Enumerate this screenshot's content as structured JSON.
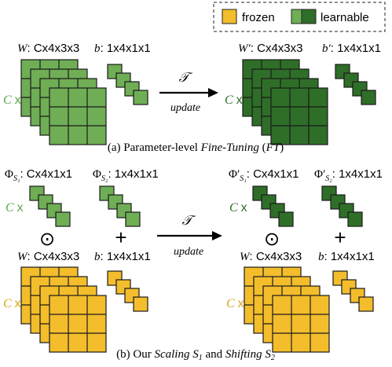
{
  "colors": {
    "frozen": "#f3bd2c",
    "learnable_light": "#6fae55",
    "learnable_dark": "#2f6e28",
    "c_light": "#5aa544",
    "c_dark": "#2f6e28",
    "c_frozen": "#d6a516",
    "stroke": "#1a1a1a"
  },
  "legend": {
    "frozen_label": "frozen",
    "learnable_label": "learnable"
  },
  "panel_a": {
    "w_name": "W",
    "w_dims": ": Cx4x3x3",
    "b_name": "b",
    "b_dims": ": 1x4x1x1",
    "w_prime_name": "W′",
    "w_prime_dims": ": Cx4x3x3",
    "b_prime_name": "b′",
    "b_prime_dims": ": 1x4x1x1",
    "c_label": "C",
    "c_times": "x",
    "transform_symbol": "𝒯",
    "arrow_label": "update",
    "caption_prefix": "(a) Parameter-level ",
    "caption_italic": "Fine-Tuning",
    "caption_mid": " (",
    "caption_abbr": "FT",
    "caption_suffix": ")"
  },
  "panel_b": {
    "phi": "Φ",
    "phi_prime": "Φ′",
    "sub_s1": "S₁",
    "sub_s2": "S₂",
    "phi1_dims": ": Cx4x1x1",
    "phi2_dims": ": 1x4x1x1",
    "c_label": "C",
    "c_times": "x",
    "odot": "⊙",
    "plus": "+",
    "w_name": "W",
    "w_dims": ": Cx4x3x3",
    "b_name": "b",
    "b_dims": ": 1x4x1x1",
    "transform_symbol": "𝒯",
    "arrow_label": "update",
    "caption_prefix": "(b) Our ",
    "caption_scaling": "Scaling S",
    "caption_s1_sub": "1",
    "caption_and": " and ",
    "caption_shifting": "Shifting S",
    "caption_s2_sub": "2"
  }
}
